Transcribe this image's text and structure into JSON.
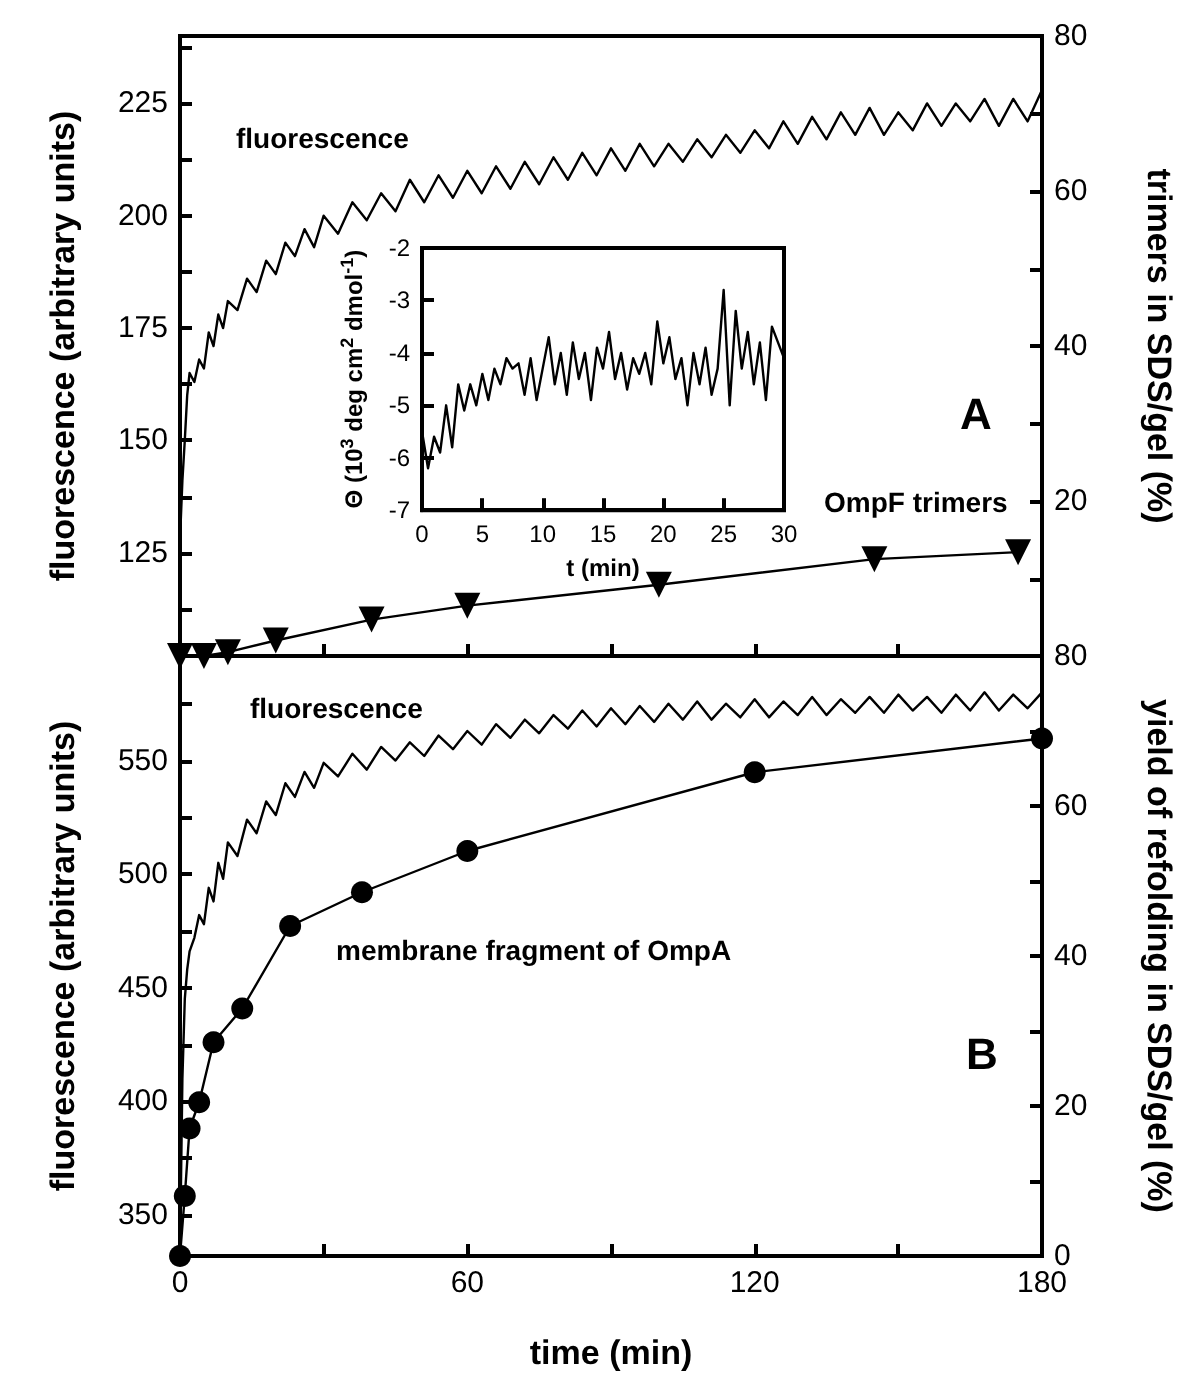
{
  "chart_data": [
    {
      "type": "line",
      "ylabel": "fluorescence (arbitrary units)",
      "y2label": "trimers in SDS/gel (%)",
      "annotations": [
        "A"
      ],
      "legend": false,
      "grid": false,
      "tick_labels": "y",
      "xlim": [
        0,
        180
      ],
      "xticks": [
        {
          "value": 0,
          "label": null
        },
        {
          "value": 30,
          "label": null
        },
        {
          "value": 60,
          "label": null
        },
        {
          "value": 90,
          "label": null
        },
        {
          "value": 120,
          "label": null
        },
        {
          "value": 150,
          "label": null
        },
        {
          "value": 180,
          "label": null
        }
      ],
      "ylim": [
        102,
        240
      ],
      "yticks": [
        {
          "value": 112.5,
          "label": null
        },
        125,
        {
          "value": 137.5,
          "label": null
        },
        150,
        {
          "value": 162.5,
          "label": null
        },
        175,
        {
          "value": 187.5,
          "label": null
        },
        200,
        {
          "value": 212.5,
          "label": null
        },
        225,
        {
          "value": 237.5,
          "label": null
        }
      ],
      "y2lim": [
        0,
        80
      ],
      "y2ticks": [
        {
          "value": 10,
          "label": null
        },
        20,
        {
          "value": 30,
          "label": null
        },
        40,
        {
          "value": 50,
          "label": null
        },
        60,
        {
          "value": 70,
          "label": null
        },
        80
      ],
      "series": [
        {
          "name": "fluorescence",
          "color": "#000000",
          "marker": "none",
          "x": [
            0,
            0.5,
            1,
            1.5,
            2,
            3,
            4,
            5,
            6,
            7,
            8,
            9,
            10,
            12,
            14,
            16,
            18,
            20,
            22,
            24,
            26,
            28,
            30,
            33,
            36,
            39,
            42,
            45,
            48,
            51,
            54,
            57,
            60,
            63,
            66,
            69,
            72,
            75,
            78,
            81,
            84,
            87,
            90,
            93,
            96,
            99,
            102,
            105,
            108,
            111,
            114,
            117,
            120,
            123,
            126,
            129,
            132,
            135,
            138,
            141,
            144,
            147,
            150,
            153,
            156,
            159,
            162,
            165,
            168,
            171,
            174,
            177,
            180
          ],
          "values": [
            128,
            141,
            150,
            160,
            165,
            163,
            168,
            166,
            174,
            171,
            178,
            175,
            181,
            179,
            186,
            183,
            190,
            187,
            194,
            191,
            197,
            193,
            200,
            196,
            203,
            199,
            205,
            201,
            208,
            203,
            209,
            204,
            210,
            205,
            211,
            206,
            212,
            207,
            213,
            208,
            214,
            209,
            215,
            210,
            216,
            211,
            216,
            212,
            217,
            213,
            218,
            214,
            219,
            215,
            221,
            216,
            222,
            217,
            223,
            218,
            224,
            218,
            223,
            219,
            225,
            220,
            225,
            221,
            226,
            220,
            226,
            221,
            228
          ]
        },
        {
          "name": "OmpF trimers",
          "color": "#000000",
          "marker": "triangle",
          "axis": "y2",
          "x": [
            0,
            5,
            10,
            20,
            40,
            60,
            100,
            145,
            175
          ],
          "values": [
            0,
            0,
            0.5,
            2,
            4.7,
            6.5,
            9.2,
            12.5,
            13.4
          ]
        }
      ]
    },
    {
      "type": "line",
      "xlabel": "time (min)",
      "ylabel": "fluorescence (arbitrary units)",
      "y2label": "yield of refolding in SDS/gel (%)",
      "annotations": [
        "B"
      ],
      "legend": false,
      "grid": false,
      "xlim": [
        0,
        180
      ],
      "xticks": [
        0,
        {
          "value": 30,
          "label": null
        },
        60,
        {
          "value": 90,
          "label": null
        },
        120,
        {
          "value": 150,
          "label": null
        },
        180
      ],
      "ylim": [
        332,
        596
      ],
      "yticks": [
        350,
        {
          "value": 375,
          "label": null
        },
        400,
        {
          "value": 425,
          "label": null
        },
        450,
        {
          "value": 475,
          "label": null
        },
        500,
        {
          "value": 525,
          "label": null
        },
        550,
        {
          "value": 575,
          "label": null
        }
      ],
      "y2lim": [
        0,
        80
      ],
      "y2ticks": [
        0,
        {
          "value": 10,
          "label": null
        },
        20,
        {
          "value": 30,
          "label": null
        },
        40,
        {
          "value": 50,
          "label": null
        },
        60,
        {
          "value": 70,
          "label": null
        },
        80
      ],
      "series": [
        {
          "name": "fluorescence",
          "color": "#000000",
          "marker": "none",
          "x": [
            0,
            0.5,
            1,
            1.5,
            2,
            3,
            4,
            5,
            6,
            7,
            8,
            9,
            10,
            12,
            14,
            16,
            18,
            20,
            22,
            24,
            26,
            28,
            30,
            33,
            36,
            39,
            42,
            45,
            48,
            51,
            54,
            57,
            60,
            63,
            66,
            69,
            72,
            75,
            78,
            81,
            84,
            87,
            90,
            93,
            96,
            99,
            102,
            105,
            108,
            111,
            114,
            117,
            120,
            123,
            126,
            129,
            132,
            135,
            138,
            141,
            144,
            147,
            150,
            153,
            156,
            159,
            162,
            165,
            168,
            171,
            174,
            177,
            180
          ],
          "values": [
            332,
            410,
            445,
            458,
            466,
            472,
            482,
            478,
            494,
            488,
            505,
            498,
            514,
            508,
            524,
            518,
            532,
            526,
            540,
            534,
            545,
            538,
            549,
            543,
            553,
            546,
            556,
            550,
            558,
            552,
            561,
            555,
            563,
            557,
            566,
            560,
            568,
            562,
            570,
            564,
            572,
            565,
            573,
            566,
            574,
            567,
            575,
            568,
            576,
            568,
            575,
            569,
            577,
            569,
            576,
            570,
            578,
            570,
            577,
            571,
            578,
            571,
            579,
            572,
            578,
            571,
            579,
            572,
            580,
            572,
            579,
            573,
            580
          ]
        },
        {
          "name": "membrane fragment of OmpA",
          "color": "#000000",
          "marker": "circle",
          "axis": "y2",
          "x": [
            0,
            1,
            2,
            4,
            7,
            13,
            23,
            38,
            60,
            120,
            180
          ],
          "values": [
            0,
            8,
            17,
            20.5,
            28.5,
            33,
            44,
            48.5,
            54,
            64.5,
            69
          ]
        }
      ]
    },
    {
      "type": "line",
      "xlabel": "t (min)",
      "ylabel": "Θ (10$^{3}$ deg cm$^{2}$ dmol$^{-1}$)",
      "legend": false,
      "grid": false,
      "xlim": [
        0,
        30
      ],
      "xticks": [
        0,
        5,
        10,
        15,
        20,
        25,
        30
      ],
      "ylim": [
        -7,
        -2
      ],
      "yticks": [
        -7,
        -6,
        -5,
        -4,
        -3,
        -2
      ],
      "series": [
        {
          "color": "#000000",
          "marker": "none",
          "x": [
            0,
            0.5,
            1,
            1.5,
            2,
            2.5,
            3,
            3.5,
            4,
            4.5,
            5,
            5.5,
            6,
            6.5,
            7,
            7.5,
            8,
            8.5,
            9,
            9.5,
            10,
            10.5,
            11,
            11.5,
            12,
            12.5,
            13,
            13.5,
            14,
            14.5,
            15,
            15.5,
            16,
            16.5,
            17,
            17.5,
            18,
            18.5,
            19,
            19.5,
            20,
            20.5,
            21,
            21.5,
            22,
            22.5,
            23,
            23.5,
            24,
            24.5,
            25,
            25.5,
            26,
            26.5,
            27,
            27.5,
            28,
            28.5,
            29,
            29.5,
            30
          ],
          "values": [
            -5.5,
            -6.2,
            -5.6,
            -5.9,
            -5.0,
            -5.8,
            -4.6,
            -5.1,
            -4.6,
            -5.0,
            -4.4,
            -4.9,
            -4.3,
            -4.6,
            -4.1,
            -4.3,
            -4.2,
            -4.8,
            -4.1,
            -4.9,
            -4.3,
            -3.7,
            -4.6,
            -4.0,
            -4.8,
            -3.8,
            -4.5,
            -4.0,
            -4.9,
            -3.9,
            -4.3,
            -3.6,
            -4.5,
            -4.0,
            -4.7,
            -4.1,
            -4.4,
            -4.0,
            -4.6,
            -3.4,
            -4.2,
            -3.7,
            -4.5,
            -4.1,
            -5.0,
            -4.0,
            -4.6,
            -3.9,
            -4.8,
            -4.3,
            -2.8,
            -5.0,
            -3.2,
            -4.3,
            -3.6,
            -4.6,
            -3.8,
            -4.9,
            -3.5,
            -3.8,
            -4.1
          ]
        }
      ]
    }
  ]
}
